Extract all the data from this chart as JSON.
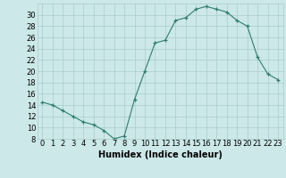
{
  "x": [
    0,
    1,
    2,
    3,
    4,
    5,
    6,
    7,
    8,
    9,
    10,
    11,
    12,
    13,
    14,
    15,
    16,
    17,
    18,
    19,
    20,
    21,
    22,
    23
  ],
  "y": [
    14.5,
    14.0,
    13.0,
    12.0,
    11.0,
    10.5,
    9.5,
    8.0,
    8.5,
    15.0,
    20.0,
    25.0,
    25.5,
    29.0,
    29.5,
    31.0,
    31.5,
    31.0,
    30.5,
    29.0,
    28.0,
    22.5,
    19.5,
    18.5
  ],
  "xlabel": "Humidex (Indice chaleur)",
  "ylim": [
    8,
    32
  ],
  "xlim": [
    -0.5,
    23.5
  ],
  "yticks": [
    8,
    10,
    12,
    14,
    16,
    18,
    20,
    22,
    24,
    26,
    28,
    30
  ],
  "xticks": [
    0,
    1,
    2,
    3,
    4,
    5,
    6,
    7,
    8,
    9,
    10,
    11,
    12,
    13,
    14,
    15,
    16,
    17,
    18,
    19,
    20,
    21,
    22,
    23
  ],
  "line_color": "#2e7d6e",
  "marker": "+",
  "marker_size": 3,
  "bg_color": "#cce8e8",
  "grid_color": "#aacccc",
  "axis_fontsize": 6.5,
  "tick_fontsize": 6,
  "label_fontsize": 7
}
